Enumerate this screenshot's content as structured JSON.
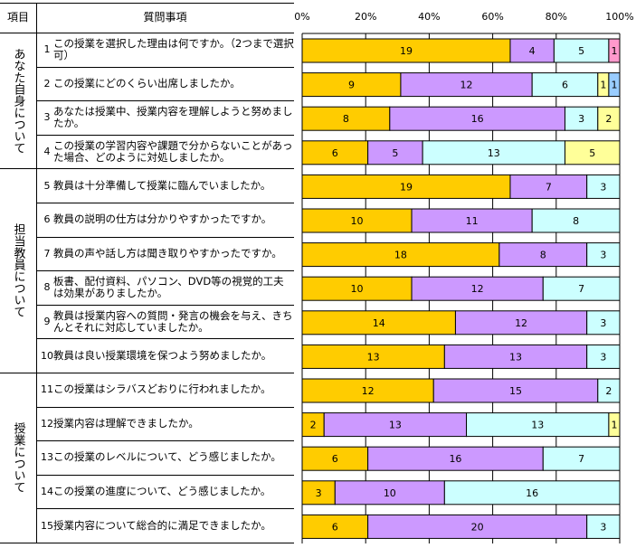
{
  "table": {
    "header_item": "項目",
    "header_question": "質問事項",
    "sections": [
      {
        "label": "あなた自身について",
        "rows": [
          0,
          1,
          2,
          3
        ]
      },
      {
        "label": "担当教員について",
        "rows": [
          4,
          5,
          6,
          7,
          8,
          9
        ]
      },
      {
        "label": "授業について",
        "rows": [
          10,
          11,
          12,
          13,
          14
        ]
      }
    ],
    "questions": [
      {
        "num": "1",
        "text": "この授業を選択した理由は何ですか。（2つまで選択可）"
      },
      {
        "num": "2",
        "text": " この授業にどのくらい出席しましたか。"
      },
      {
        "num": "3",
        "text": "あなたは授業中、授業内容を理解しようと努めましたか。"
      },
      {
        "num": "4",
        "text": "この授業の学習内容や課題で分からないことがあった場合、どのように対処しましたか。"
      },
      {
        "num": "5",
        "text": "教員は十分準備して授業に臨んでいましたか。"
      },
      {
        "num": "6",
        "text": "教員の説明の仕方は分かりやすかったですか。"
      },
      {
        "num": "7",
        "text": "教員の声や話し方は聞き取りやすかったですか。"
      },
      {
        "num": "8",
        "text": "板書、配付資料、パソコン、DVD等の視覚的工夫は効果がありましたか。"
      },
      {
        "num": "9",
        "text": "教員は授業内容への質問・発言の機会を与え、きちんとそれに対応していましたか。"
      },
      {
        "num": "10",
        "text": "教員は良い授業環境を保つよう努めましたか。"
      },
      {
        "num": "11",
        "text": "この授業はシラバスどおりに行われましたか。"
      },
      {
        "num": "12",
        "text": "授業内容は理解できましたか。"
      },
      {
        "num": "13",
        "text": "この授業のレベルについて、どう感じましたか。"
      },
      {
        "num": "14",
        "text": "この授業の進度について、どう感じましたか。"
      },
      {
        "num": "15",
        "text": "授業内容について総合的に満足できましたか。"
      }
    ]
  },
  "chart_data": {
    "type": "bar",
    "orientation": "horizontal",
    "stacked": "percent",
    "xlim": [
      0,
      100
    ],
    "xticks": [
      "0%",
      "20%",
      "40%",
      "60%",
      "80%",
      "100%"
    ],
    "grid": true,
    "colors": [
      "#FFCC00",
      "#CC99FF",
      "#CCFFFF",
      "#FFFF99",
      "#FF99CC",
      "#99CCFF"
    ],
    "categories": [
      "1",
      "2",
      "3",
      "4",
      "5",
      "6",
      "7",
      "8",
      "9",
      "10",
      "11",
      "12",
      "13",
      "14",
      "15"
    ],
    "rows": [
      [
        19,
        4,
        5,
        0,
        1,
        0
      ],
      [
        9,
        12,
        6,
        1,
        0,
        1
      ],
      [
        8,
        16,
        3,
        2,
        0,
        0
      ],
      [
        6,
        5,
        13,
        5,
        0,
        0
      ],
      [
        19,
        7,
        3,
        0,
        0,
        0
      ],
      [
        10,
        11,
        8,
        0,
        0,
        0
      ],
      [
        18,
        8,
        3,
        0,
        0,
        0
      ],
      [
        10,
        12,
        7,
        0,
        0,
        0
      ],
      [
        14,
        12,
        3,
        0,
        0,
        0
      ],
      [
        13,
        13,
        3,
        0,
        0,
        0
      ],
      [
        12,
        15,
        2,
        0,
        0,
        0
      ],
      [
        2,
        13,
        13,
        1,
        0,
        0
      ],
      [
        6,
        16,
        7,
        0,
        0,
        0
      ],
      [
        3,
        10,
        16,
        0,
        0,
        0
      ],
      [
        6,
        20,
        3,
        0,
        0,
        0
      ]
    ]
  }
}
